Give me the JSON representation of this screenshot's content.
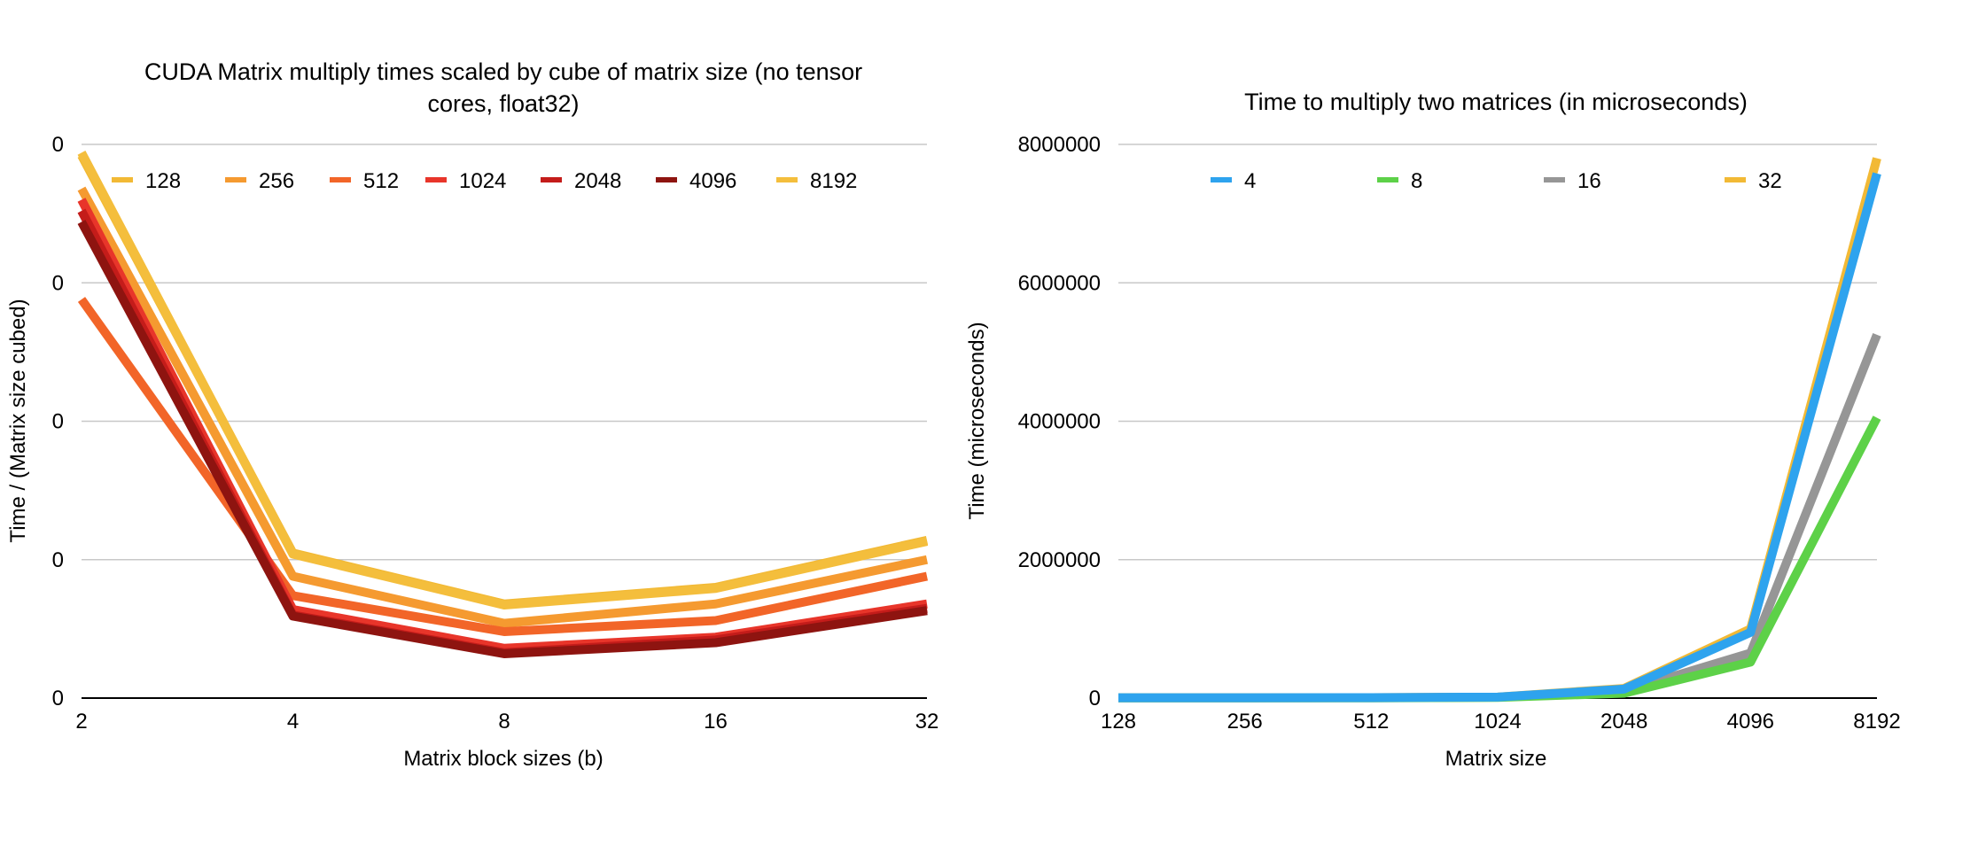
{
  "chart_data": [
    {
      "type": "line",
      "title_lines": [
        "CUDA Matrix multiply times scaled by cube of matrix size (no tensor",
        "cores, float32)"
      ],
      "xlabel": "Matrix block sizes (b)",
      "ylabel": "Time / (Matrix size cubed)",
      "categories": [
        "2",
        "4",
        "8",
        "16",
        "32"
      ],
      "ytick_labels": [
        "0",
        "0",
        "0",
        "0",
        "0"
      ],
      "ylim": [
        0,
        1
      ],
      "grid": true,
      "legend_position": "top",
      "series": [
        {
          "name": "128",
          "color": "#F2B935",
          "values": [
            0.98,
            0.262,
            0.17,
            0.2,
            0.285
          ]
        },
        {
          "name": "256",
          "color": "#F59A30",
          "values": [
            0.92,
            0.22,
            0.135,
            0.17,
            0.25
          ]
        },
        {
          "name": "512",
          "color": "#F26528",
          "values": [
            0.72,
            0.185,
            0.12,
            0.14,
            0.22
          ]
        },
        {
          "name": "1024",
          "color": "#E8352A",
          "values": [
            0.9,
            0.16,
            0.09,
            0.11,
            0.17
          ]
        },
        {
          "name": "2048",
          "color": "#C41C1A",
          "values": [
            0.88,
            0.15,
            0.082,
            0.105,
            0.162
          ]
        },
        {
          "name": "4096",
          "color": "#8E1410",
          "values": [
            0.86,
            0.148,
            0.08,
            0.1,
            0.158
          ]
        },
        {
          "name": "8192",
          "color": "#F4BE3C",
          "values": [
            0.985,
            0.26,
            0.168,
            0.198,
            0.283
          ]
        }
      ]
    },
    {
      "type": "line",
      "title": "Time to multiply two matrices (in microseconds)",
      "xlabel": "Matrix size",
      "ylabel": "Time (microseconds)",
      "categories": [
        "128",
        "256",
        "512",
        "1024",
        "2048",
        "4096",
        "8192"
      ],
      "ytick_labels": [
        "0",
        "2000000",
        "4000000",
        "6000000",
        "8000000"
      ],
      "ylim": [
        0,
        8000000
      ],
      "grid": true,
      "legend_position": "top",
      "series": [
        {
          "name": "32",
          "color": "#F2B935",
          "values": [
            5000,
            5000,
            6000,
            15000,
            140000,
            1000000,
            7800000
          ]
        },
        {
          "name": "16",
          "color": "#969696",
          "values": [
            4000,
            4000,
            5000,
            12000,
            100000,
            650000,
            5250000
          ]
        },
        {
          "name": "8",
          "color": "#5DD148",
          "values": [
            3000,
            3000,
            4000,
            10000,
            70000,
            520000,
            4050000
          ]
        },
        {
          "name": "4",
          "color": "#2EA3EE",
          "values": [
            5000,
            5000,
            6000,
            15000,
            130000,
            950000,
            7580000
          ]
        }
      ],
      "legend_order": [
        "4",
        "8",
        "16",
        "32"
      ]
    }
  ]
}
